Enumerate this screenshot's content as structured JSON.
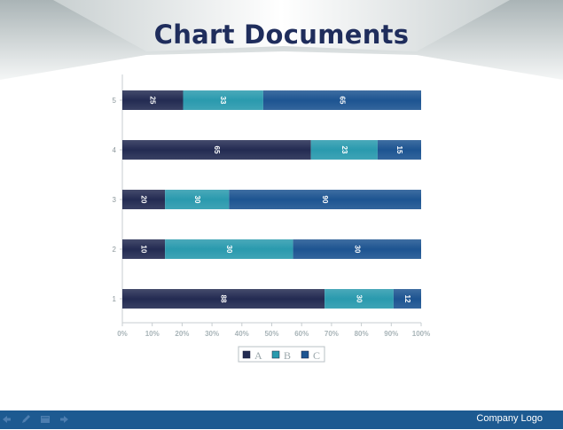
{
  "title": "Chart Documents",
  "footer": {
    "logo": "Company Logo"
  },
  "colors": {
    "A": "#232b52",
    "B": "#2a9aae",
    "C": "#1d5491",
    "bar": "#1d5a91"
  },
  "chart_data": {
    "type": "bar",
    "orientation": "horizontal",
    "stacked": "percent",
    "categories": [
      "1",
      "2",
      "3",
      "4",
      "5"
    ],
    "series": [
      {
        "name": "A",
        "values": [
          88,
          10,
          20,
          65,
          25
        ]
      },
      {
        "name": "B",
        "values": [
          30,
          30,
          30,
          23,
          33
        ]
      },
      {
        "name": "C",
        "values": [
          12,
          30,
          90,
          15,
          65
        ]
      }
    ],
    "xticks": [
      "0%",
      "10%",
      "20%",
      "30%",
      "40%",
      "50%",
      "60%",
      "70%",
      "80%",
      "90%",
      "100%"
    ],
    "xlim": [
      0,
      100
    ],
    "legend": "bottom",
    "grid": false
  }
}
